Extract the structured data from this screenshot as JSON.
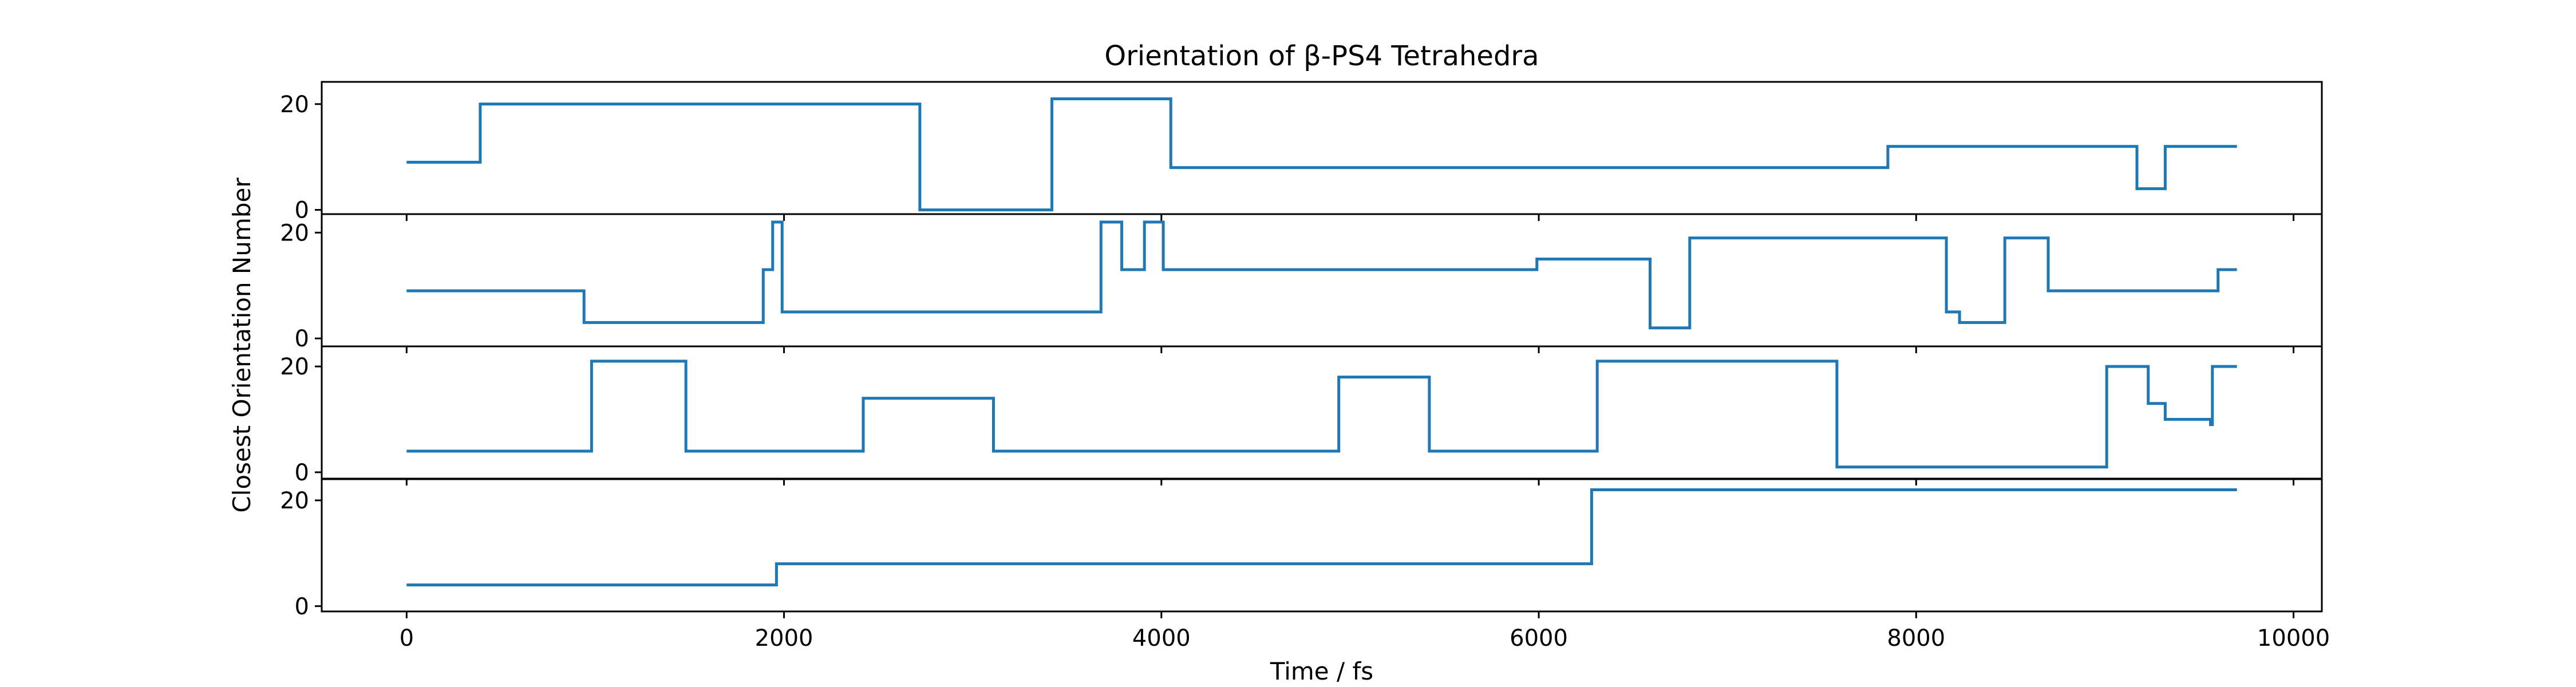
{
  "chart_data": {
    "type": "line",
    "drawstyle": "steps",
    "title": "Orientation of β-PS4 Tetrahedra",
    "xlabel": "Time / fs",
    "ylabel": "Closest Orientation Number",
    "xlim": [
      -450,
      10150
    ],
    "xticks": [
      0,
      2000,
      4000,
      6000,
      8000,
      10000
    ],
    "xtick_labels": [
      "0",
      "2000",
      "4000",
      "6000",
      "8000",
      "10000"
    ],
    "grid": false,
    "legend": "none",
    "line_color": "#1f77b4",
    "panels": [
      {
        "ylim": [
          -0.8,
          24.2
        ],
        "yticks": [
          0,
          20
        ],
        "ytick_labels": [
          "0",
          "20"
        ],
        "steps": [
          [
            0,
            9
          ],
          [
            390,
            20
          ],
          [
            2720,
            0
          ],
          [
            3420,
            21
          ],
          [
            4050,
            8
          ],
          [
            7850,
            12
          ],
          [
            9170,
            4
          ],
          [
            9320,
            12
          ],
          [
            9700,
            12
          ]
        ]
      },
      {
        "ylim": [
          -1.5,
          23.5
        ],
        "yticks": [
          0,
          20
        ],
        "ytick_labels": [
          "0",
          "20"
        ],
        "steps": [
          [
            0,
            9
          ],
          [
            940,
            3
          ],
          [
            1890,
            13
          ],
          [
            1940,
            22
          ],
          [
            1990,
            5
          ],
          [
            3680,
            22
          ],
          [
            3790,
            13
          ],
          [
            3910,
            22
          ],
          [
            4010,
            13
          ],
          [
            5990,
            15
          ],
          [
            6590,
            2
          ],
          [
            6800,
            19
          ],
          [
            8160,
            5
          ],
          [
            8230,
            3
          ],
          [
            8470,
            19
          ],
          [
            8700,
            9
          ],
          [
            9600,
            13
          ],
          [
            9700,
            13
          ]
        ]
      },
      {
        "ylim": [
          -1.2,
          23.8
        ],
        "yticks": [
          0,
          20
        ],
        "ytick_labels": [
          "0",
          "20"
        ],
        "steps": [
          [
            0,
            4
          ],
          [
            980,
            21
          ],
          [
            1480,
            4
          ],
          [
            2420,
            14
          ],
          [
            3110,
            4
          ],
          [
            4940,
            18
          ],
          [
            5420,
            4
          ],
          [
            6310,
            21
          ],
          [
            7580,
            1
          ],
          [
            9010,
            20
          ],
          [
            9230,
            13
          ],
          [
            9320,
            10
          ],
          [
            9560,
            9
          ],
          [
            9570,
            20
          ],
          [
            9700,
            20
          ]
        ]
      },
      {
        "ylim": [
          -1.0,
          24.0
        ],
        "yticks": [
          0,
          20
        ],
        "ytick_labels": [
          "0",
          "20"
        ],
        "steps": [
          [
            0,
            4
          ],
          [
            1960,
            8
          ],
          [
            6280,
            22
          ],
          [
            9700,
            22
          ]
        ]
      }
    ]
  }
}
